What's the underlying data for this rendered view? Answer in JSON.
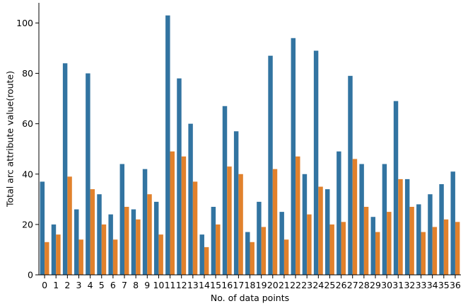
{
  "chart_data": {
    "type": "bar",
    "title": "",
    "xlabel": "No. of data points",
    "ylabel": "Total arc attribute value(route)",
    "ylim": [
      0,
      108
    ],
    "yticks": [
      0,
      20,
      40,
      60,
      80,
      100
    ],
    "grid": false,
    "categories": [
      "0",
      "1",
      "2",
      "3",
      "4",
      "5",
      "6",
      "7",
      "8",
      "9",
      "10",
      "11",
      "12",
      "13",
      "14",
      "15",
      "16",
      "17",
      "18",
      "19",
      "20",
      "21",
      "22",
      "23",
      "24",
      "25",
      "26",
      "27",
      "28",
      "29",
      "30",
      "31",
      "32",
      "33",
      "34",
      "35",
      "36"
    ],
    "series": [
      {
        "color": "#3274a1",
        "values": [
          37,
          20,
          84,
          26,
          80,
          32,
          24,
          44,
          26,
          42,
          29,
          103,
          78,
          60,
          16,
          27,
          67,
          57,
          17,
          29,
          87,
          25,
          94,
          40,
          89,
          34,
          49,
          79,
          44,
          23,
          44,
          69,
          38,
          28,
          32,
          36,
          41
        ]
      },
      {
        "color": "#e1812c",
        "values": [
          13,
          16,
          39,
          14,
          34,
          20,
          14,
          27,
          22,
          32,
          16,
          49,
          47,
          37,
          11,
          20,
          43,
          40,
          13,
          19,
          42,
          14,
          47,
          24,
          35,
          20,
          21,
          46,
          27,
          17,
          25,
          38,
          27,
          17,
          19,
          22,
          21
        ]
      }
    ]
  }
}
